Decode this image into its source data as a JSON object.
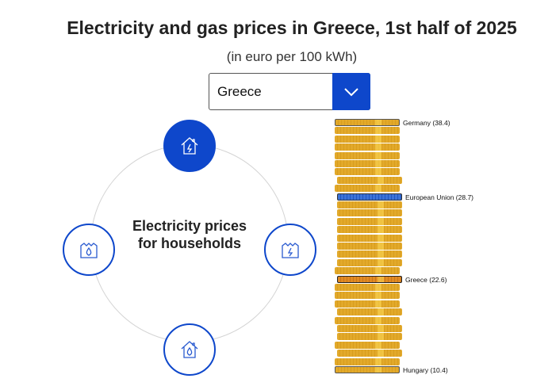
{
  "header": {
    "title": "Electricity and gas prices in Greece, 1st half of 2025",
    "subtitle": "(in euro per 100 kWh)"
  },
  "country_select": {
    "value": "Greece"
  },
  "selector": {
    "center_label": "Electricity prices for households",
    "nodes": [
      {
        "name": "electricity-households",
        "icon": "house-lightning-icon",
        "active": true
      },
      {
        "name": "electricity-non-households",
        "icon": "factory-lightning-icon",
        "active": false
      },
      {
        "name": "gas-households",
        "icon": "house-flame-icon",
        "active": false
      },
      {
        "name": "gas-non-households",
        "icon": "factory-flame-icon",
        "active": false
      }
    ]
  },
  "colors": {
    "accent": "#0e47cb",
    "coin": "#e2a92a",
    "eu": "#3c73d8",
    "greece": "#e08a22"
  },
  "coin_stack": {
    "count": 31,
    "labels": [
      {
        "index": 0,
        "text": "Germany (38.4)",
        "type": "hl"
      },
      {
        "index": 9,
        "text": "European Union (28.7)",
        "type": "eu"
      },
      {
        "index": 19,
        "text": "Greece (22.6)",
        "type": "gr"
      },
      {
        "index": 30,
        "text": "Hungary (10.4)",
        "type": "hl"
      }
    ]
  }
}
